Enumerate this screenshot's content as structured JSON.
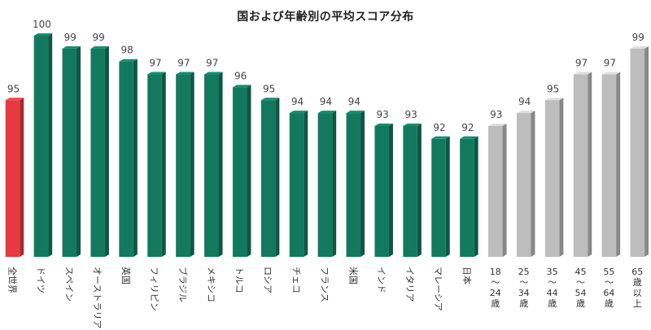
{
  "chart_data": {
    "type": "bar",
    "title": "国および年齢別の平均スコア分布",
    "xlabel": "",
    "ylabel": "",
    "ylim": [
      80,
      100
    ],
    "grid": false,
    "legend": "none",
    "categories": [
      "全世界",
      "ドイツ",
      "スペイン",
      "オーストラリア",
      "英国",
      "フィリピン",
      "ブラジル",
      "メキシコ",
      "トルコ",
      "ロシア",
      "チェコ",
      "フランス",
      "米国",
      "インド",
      "イタリア",
      "マレーシア",
      "日本",
      "18〜24歳",
      "25〜34歳",
      "35〜44歳",
      "45〜54歳",
      "55〜64歳",
      "65歳以上"
    ],
    "values": [
      95,
      100,
      99,
      99,
      98,
      97,
      97,
      97,
      96,
      95,
      94,
      94,
      94,
      93,
      93,
      92,
      92,
      93,
      94,
      95,
      97,
      97,
      99
    ],
    "groups": [
      "global",
      "country",
      "country",
      "country",
      "country",
      "country",
      "country",
      "country",
      "country",
      "country",
      "country",
      "country",
      "country",
      "country",
      "country",
      "country",
      "country",
      "age",
      "age",
      "age",
      "age",
      "age",
      "age"
    ],
    "colors": {
      "global": "#e8393f",
      "country": "#12795f",
      "age": "#bdbdbd"
    }
  }
}
